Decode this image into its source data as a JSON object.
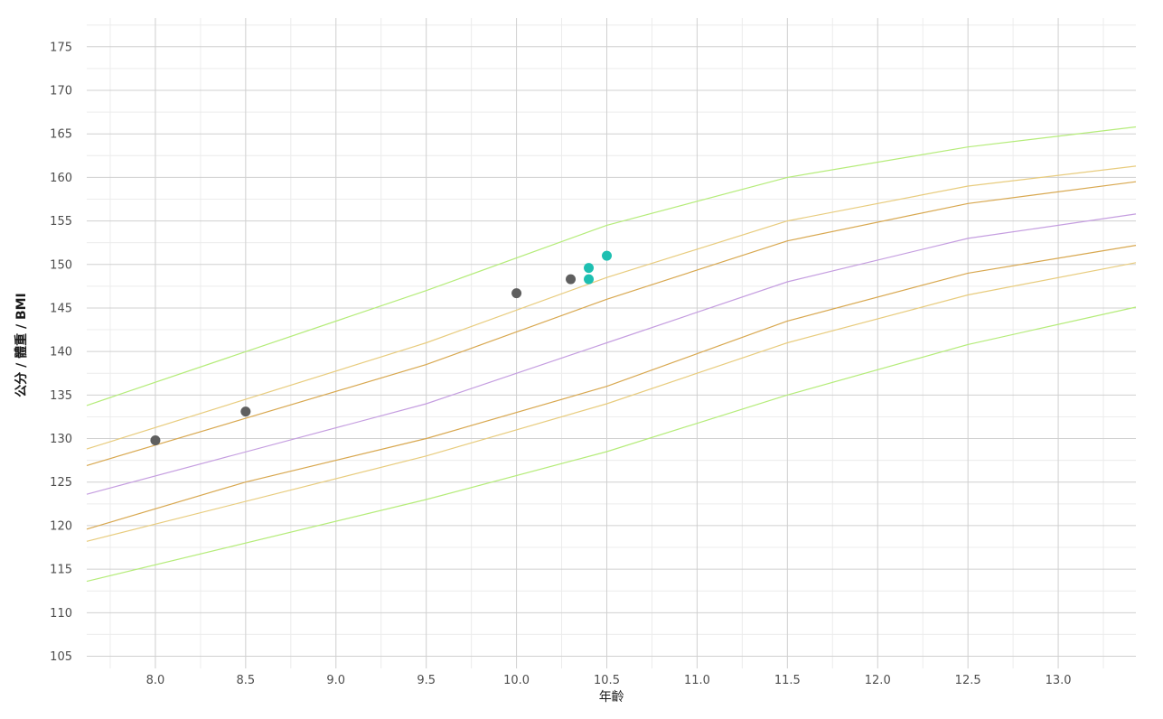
{
  "chart_data": {
    "type": "line",
    "xlabel": "年齡",
    "ylabel": "公分 / 體重 / BMI",
    "xlim": [
      7.62,
      13.43
    ],
    "ylim": [
      103.6,
      178.3
    ],
    "grid": true,
    "x_ticks": [
      8.0,
      8.5,
      9.0,
      9.5,
      10.0,
      10.5,
      11.0,
      11.5,
      12.0,
      12.5,
      13.0
    ],
    "x_tick_labels": [
      "8.0",
      "8.5",
      "9.0",
      "9.5",
      "10.0",
      "10.5",
      "11.0",
      "11.5",
      "12.0",
      "12.5",
      "13.0"
    ],
    "y_ticks": [
      105,
      110,
      115,
      120,
      125,
      130,
      135,
      140,
      145,
      150,
      155,
      160,
      165,
      170,
      175
    ],
    "y_tick_labels": [
      "105",
      "110",
      "115",
      "120",
      "125",
      "130",
      "135",
      "140",
      "145",
      "150",
      "155",
      "160",
      "165",
      "170",
      "175"
    ],
    "series": [
      {
        "color": "#b5ec7a",
        "x": [
          7.62,
          9.5,
          10.5,
          11.5,
          12.5,
          13.43
        ],
        "y": [
          133.8,
          147.0,
          154.5,
          160.0,
          163.5,
          165.8
        ]
      },
      {
        "color": "#e8cc7e",
        "x": [
          7.62,
          9.5,
          10.5,
          11.5,
          12.5,
          13.43
        ],
        "y": [
          128.8,
          141.0,
          148.5,
          155.0,
          159.0,
          161.3
        ]
      },
      {
        "color": "#d8a850",
        "x": [
          7.62,
          9.5,
          10.5,
          11.5,
          12.5,
          13.43
        ],
        "y": [
          126.9,
          138.5,
          146.0,
          152.7,
          157.0,
          159.5
        ]
      },
      {
        "color": "#c59ee0",
        "x": [
          7.62,
          9.5,
          10.5,
          11.5,
          12.5,
          13.43
        ],
        "y": [
          123.6,
          134.0,
          141.0,
          148.0,
          153.0,
          155.8
        ]
      },
      {
        "color": "#d8a850",
        "x": [
          7.62,
          8.5,
          9.5,
          10.5,
          11.5,
          12.5,
          13.43
        ],
        "y": [
          119.6,
          125.0,
          130.0,
          136.0,
          143.5,
          149.0,
          152.2
        ]
      },
      {
        "color": "#e8cc7e",
        "x": [
          7.62,
          9.5,
          10.5,
          11.5,
          12.5,
          13.43
        ],
        "y": [
          118.2,
          128.0,
          134.0,
          141.0,
          146.5,
          150.2
        ]
      },
      {
        "color": "#b5ec7a",
        "x": [
          7.62,
          9.5,
          10.5,
          11.5,
          12.5,
          13.43
        ],
        "y": [
          113.6,
          123.0,
          128.5,
          135.0,
          140.8,
          145.1
        ]
      }
    ],
    "points": [
      {
        "color": "#5f5f5f",
        "x": 8.0,
        "y": 129.8
      },
      {
        "color": "#5f5f5f",
        "x": 8.5,
        "y": 133.1
      },
      {
        "color": "#5f5f5f",
        "x": 10.0,
        "y": 146.7
      },
      {
        "color": "#5f5f5f",
        "x": 10.3,
        "y": 148.3
      },
      {
        "color": "#1dbfb1",
        "x": 10.4,
        "y": 149.6
      },
      {
        "color": "#1dbfb1",
        "x": 10.4,
        "y": 148.3
      },
      {
        "color": "#1dbfb1",
        "x": 10.5,
        "y": 151.0
      }
    ]
  }
}
